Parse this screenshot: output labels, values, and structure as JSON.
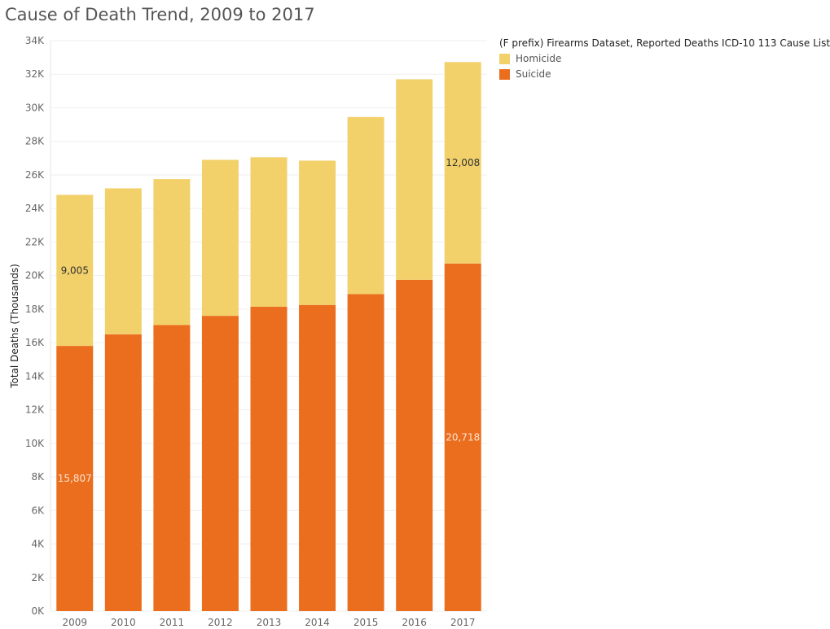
{
  "title": "Cause of Death Trend, 2009 to 2017",
  "legend": {
    "title": "(F prefix) Firearms Dataset, Reported Deaths ICD-10 113 Cause List",
    "items": [
      {
        "label": "Homicide",
        "color": "#f2d16b"
      },
      {
        "label": "Suicide",
        "color": "#eb6e1f"
      }
    ]
  },
  "chart_data": {
    "type": "bar",
    "stacked": true,
    "categories": [
      "2009",
      "2010",
      "2011",
      "2012",
      "2013",
      "2014",
      "2015",
      "2016",
      "2017"
    ],
    "series": [
      {
        "name": "Suicide",
        "color": "#eb6e1f",
        "values": [
          15807,
          16500,
          17050,
          17600,
          18150,
          18250,
          18900,
          19750,
          20718
        ]
      },
      {
        "name": "Homicide",
        "color": "#f2d16b",
        "values": [
          9005,
          8700,
          8700,
          9300,
          8900,
          8600,
          10550,
          11950,
          12008
        ]
      }
    ],
    "data_labels": [
      {
        "series": "Homicide",
        "category": "2009",
        "text": "9,005"
      },
      {
        "series": "Suicide",
        "category": "2009",
        "text": "15,807"
      },
      {
        "series": "Homicide",
        "category": "2017",
        "text": "12,008"
      },
      {
        "series": "Suicide",
        "category": "2017",
        "text": "20,718"
      }
    ],
    "ylabel": "Total Deaths (Thousands)",
    "xlabel": "",
    "ylim": [
      0,
      34000
    ],
    "yticks": [
      0,
      2000,
      4000,
      6000,
      8000,
      10000,
      12000,
      14000,
      16000,
      18000,
      20000,
      22000,
      24000,
      26000,
      28000,
      30000,
      32000,
      34000
    ],
    "ytick_labels": [
      "0K",
      "2K",
      "4K",
      "6K",
      "8K",
      "10K",
      "12K",
      "14K",
      "16K",
      "18K",
      "20K",
      "22K",
      "24K",
      "26K",
      "28K",
      "30K",
      "32K",
      "34K"
    ],
    "grid": true,
    "legend_position": "top-right"
  }
}
